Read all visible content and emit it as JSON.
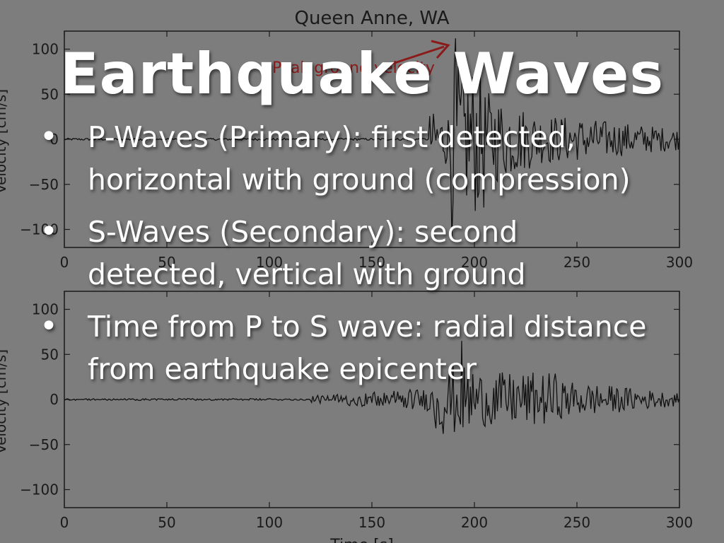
{
  "slide": {
    "title": "Earthquake Waves",
    "bullet_glyph": "•",
    "bullets": [
      "P-Waves (Primary): first detected, horizontal with ground (compression)",
      "S-Waves (Secondary): second detected, vertical with ground",
      "Time from P to S wave: radial distance from earthquake epicenter"
    ]
  },
  "background_figure": {
    "title": "Queen Anne, WA",
    "annotation": "Peak ground velocity",
    "annotation_color": "#8b1a1a",
    "line_color": "#111111",
    "top_ylabel": "Velocity [cm/s]",
    "bottom_ylabel": "Velocity [cm/s]",
    "xlabel": "Time [s]",
    "x_ticks": [
      "0",
      "50",
      "100",
      "150",
      "200",
      "250",
      "300"
    ],
    "y_ticks": [
      "100",
      "50",
      "0",
      "−50",
      "−100"
    ]
  },
  "chart_data": {
    "type": "line",
    "title": "Queen Anne, WA",
    "xlabel": "Time [s]",
    "ylabel": "Velocity [cm/s]",
    "xlim": [
      0,
      300
    ],
    "ylim": [
      -120,
      120
    ],
    "panels": [
      {
        "name": "top",
        "peak": {
          "x": 191,
          "y": 112
        },
        "annotation": "Peak ground velocity"
      },
      {
        "name": "bottom",
        "peak": {
          "x": 194,
          "y": 65
        }
      }
    ]
  }
}
